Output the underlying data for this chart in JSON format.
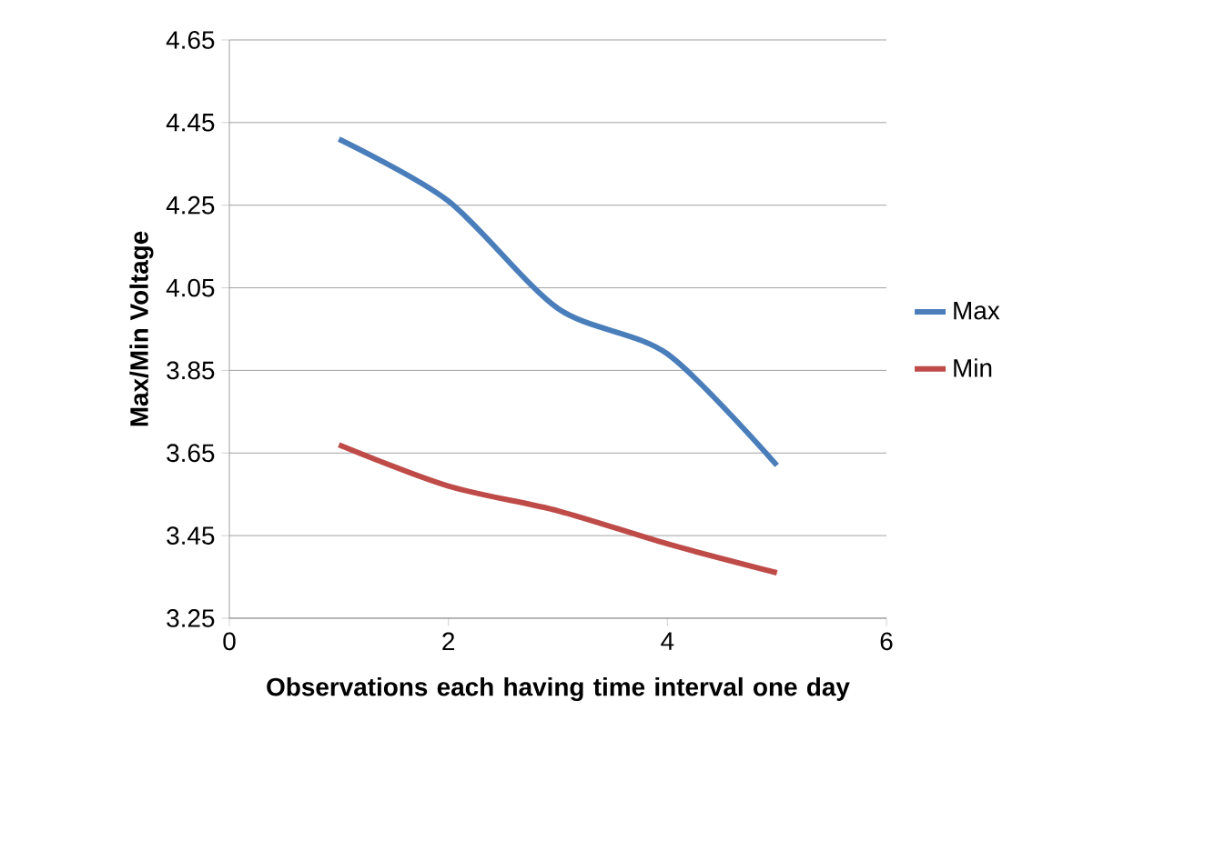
{
  "chart_data": {
    "type": "line",
    "xlabel": "Observations each having time interval one day",
    "ylabel": "Max/Min Voltage",
    "x": [
      1,
      2,
      3,
      4,
      5
    ],
    "series": [
      {
        "name": "Max",
        "color": "#4a7ebb",
        "values": [
          4.41,
          4.26,
          4.0,
          3.89,
          3.62
        ]
      },
      {
        "name": "Min",
        "color": "#be4b48",
        "values": [
          3.67,
          3.57,
          3.51,
          3.43,
          3.36
        ]
      }
    ],
    "xlim": [
      0,
      6
    ],
    "xticks": [
      0,
      2,
      4,
      6
    ],
    "ylim": [
      3.25,
      4.65
    ],
    "yticks": [
      3.25,
      3.45,
      3.65,
      3.85,
      4.05,
      4.25,
      4.45,
      4.65
    ],
    "grid": "y",
    "legend": "right",
    "marker": "none",
    "line_style": "solid"
  }
}
